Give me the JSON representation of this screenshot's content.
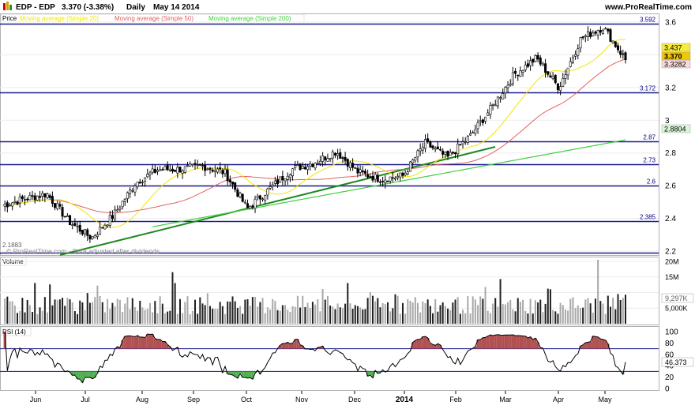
{
  "header": {
    "symbol": "EDP - EDP",
    "quote": "3.370 (-3.38%)",
    "period": "Daily",
    "date": "May 14 2014",
    "site": "www.ProRealTime.com"
  },
  "price_panel": {
    "label": "Price",
    "legend": [
      {
        "text": "Moving average (Simple 20)",
        "color": "#f2e600"
      },
      {
        "text": "Moving average (Simple 50)",
        "color": "#e06060"
      },
      {
        "text": "Moving average (Simple 200)",
        "color": "#40d040"
      }
    ],
    "axis_ticks": [
      "3.6",
      "3.4",
      "3.2",
      "3",
      "2.8",
      "2.6",
      "2.4",
      "2.2"
    ],
    "price_badges": [
      {
        "text": "3.437",
        "bg": "#f7ea3c"
      },
      {
        "text": "3.370",
        "bg": "#f0c800"
      },
      {
        "text": "3.3282",
        "bg": "#f8d8d8"
      },
      {
        "text": "2.8804",
        "bg": "#d8f8d8"
      }
    ],
    "level_labels": [
      "3.592",
      "3.172",
      "2.87",
      "2.73",
      "2.6",
      "2.385",
      "2.1883"
    ],
    "watermark": "© ProRealTime.com - Data adjusted after dividends"
  },
  "volume_panel": {
    "label": "Volume",
    "axis_ticks": [
      "20M",
      "15M",
      "10M",
      "5,000K"
    ],
    "badge": "9,297K"
  },
  "rsi_panel": {
    "label": "RSI (14)",
    "axis_ticks": [
      "100",
      "80",
      "60",
      "40",
      "20",
      "0"
    ],
    "badge": "46.373"
  },
  "x_axis": [
    "Jun",
    "Jul",
    "Aug",
    "Sep",
    "Oct",
    "Nov",
    "Dec",
    "2014",
    "Feb",
    "Mar",
    "Apr",
    "May"
  ],
  "chart_data": {
    "type": "candlestick",
    "symbol": "EDP",
    "price_axis": {
      "ylim": [
        2.18,
        3.63
      ]
    },
    "horizontal_levels": [
      3.592,
      3.172,
      2.87,
      2.73,
      2.6,
      2.385,
      2.1883
    ],
    "trendline": {
      "from": {
        "month": "Jun",
        "value": 2.19
      },
      "to": {
        "month": "Feb",
        "value": 2.76
      }
    },
    "close_path": [
      {
        "month": "May (2013)",
        "close": 2.48
      },
      {
        "month": "Jun",
        "close": 2.52
      },
      {
        "month": "Jun",
        "close": 2.55
      },
      {
        "month": "Jul",
        "close": 2.38
      },
      {
        "month": "Jul",
        "close": 2.28
      },
      {
        "month": "Jul",
        "close": 2.42
      },
      {
        "month": "Aug",
        "close": 2.62
      },
      {
        "month": "Aug",
        "close": 2.7
      },
      {
        "month": "Sep",
        "close": 2.7
      },
      {
        "month": "Sep",
        "close": 2.72
      },
      {
        "month": "Oct",
        "close": 2.68
      },
      {
        "month": "Oct",
        "close": 2.46
      },
      {
        "month": "Oct",
        "close": 2.58
      },
      {
        "month": "Nov",
        "close": 2.7
      },
      {
        "month": "Nov",
        "close": 2.74
      },
      {
        "month": "Nov",
        "close": 2.81
      },
      {
        "month": "Dec",
        "close": 2.68
      },
      {
        "month": "Dec",
        "close": 2.64
      },
      {
        "month": "2014",
        "close": 2.66
      },
      {
        "month": "2014",
        "close": 2.86
      },
      {
        "month": "Feb",
        "close": 2.77
      },
      {
        "month": "Feb",
        "close": 2.9
      },
      {
        "month": "Mar",
        "close": 3.08
      },
      {
        "month": "Mar",
        "close": 3.28
      },
      {
        "month": "Apr",
        "close": 3.38
      },
      {
        "month": "Apr",
        "close": 3.2
      },
      {
        "month": "May",
        "close": 3.5
      },
      {
        "month": "May",
        "close": 3.57
      },
      {
        "month": "May 14 2014",
        "close": 3.37
      }
    ],
    "volume": {
      "ylim": [
        0,
        21000000
      ],
      "last": 9297000
    },
    "rsi": {
      "ylim": [
        0,
        100
      ],
      "overbought": 70,
      "oversold": 30,
      "last": 46.373
    }
  }
}
